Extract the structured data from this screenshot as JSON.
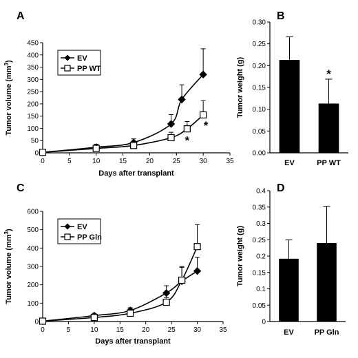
{
  "chart_data": [
    {
      "panel": "A",
      "type": "line",
      "xlabel": "Days after transplant",
      "ylabel": "Tumor volume (mm",
      "ylabel_sup": "3",
      "ylabel_end": ")",
      "xlim": [
        0,
        35
      ],
      "ylim": [
        0,
        450
      ],
      "xticks": [
        0,
        5,
        10,
        15,
        20,
        25,
        30,
        35
      ],
      "yticks": [
        0,
        50,
        100,
        150,
        200,
        250,
        300,
        350,
        400,
        450
      ],
      "legend": "top-left",
      "series": [
        {
          "name": "EV",
          "marker": "diamond",
          "x": [
            0,
            10,
            17,
            24,
            26,
            30
          ],
          "y": [
            2,
            23,
            42,
            118,
            218,
            320
          ],
          "err": [
            0,
            12,
            15,
            38,
            60,
            105
          ]
        },
        {
          "name": "PP WT",
          "marker": "square",
          "x": [
            0,
            10,
            17,
            24,
            27,
            30
          ],
          "y": [
            2,
            18,
            30,
            62,
            98,
            155
          ],
          "err": [
            0,
            10,
            10,
            22,
            30,
            58
          ]
        }
      ],
      "annotations": [
        {
          "text": "*",
          "x": 27,
          "y": 52
        },
        {
          "text": "*",
          "x": 30.5,
          "y": 112
        }
      ]
    },
    {
      "panel": "B",
      "type": "bar",
      "ylabel": "Tumor weight (g)",
      "categories": [
        "EV",
        "PP WT"
      ],
      "values": [
        0.213,
        0.113
      ],
      "err": [
        0.053,
        0.056
      ],
      "ylim": [
        0,
        0.3
      ],
      "yticks": [
        "0.00",
        "0.05",
        "0.10",
        "0.15",
        "0.20",
        "0.25",
        "0.30"
      ],
      "annotations": [
        {
          "text": "*",
          "category": "PP WT"
        }
      ]
    },
    {
      "panel": "C",
      "type": "line",
      "xlabel": "Days after transplant",
      "ylabel": "Tumor volume (mm",
      "ylabel_sup": "3",
      "ylabel_end": ")",
      "xlim": [
        0,
        35
      ],
      "ylim": [
        0,
        600
      ],
      "xticks": [
        0,
        5,
        10,
        15,
        20,
        25,
        30,
        35
      ],
      "yticks": [
        0,
        100,
        200,
        300,
        400,
        500,
        600
      ],
      "legend": "top-left",
      "series": [
        {
          "name": "EV",
          "marker": "diamond",
          "x": [
            0,
            10,
            17,
            24,
            27,
            30
          ],
          "y": [
            2,
            32,
            60,
            155,
            220,
            275
          ],
          "err": [
            0,
            12,
            15,
            40,
            80,
            75
          ]
        },
        {
          "name": "PP Gln",
          "marker": "square",
          "x": [
            0,
            10,
            17,
            24,
            27,
            30
          ],
          "y": [
            2,
            22,
            45,
            105,
            225,
            408
          ],
          "err": [
            0,
            10,
            12,
            25,
            70,
            120
          ]
        }
      ]
    },
    {
      "panel": "D",
      "type": "bar",
      "ylabel": "Tumor weight (g)",
      "categories": [
        "EV",
        "PP Gln"
      ],
      "values": [
        0.192,
        0.24
      ],
      "err": [
        0.058,
        0.112
      ],
      "ylim": [
        0,
        0.4
      ],
      "yticks": [
        "0",
        "0.05",
        "0.1",
        "0.15",
        "0.2",
        "0.25",
        "0.3",
        "0.35",
        "0.4"
      ]
    }
  ]
}
